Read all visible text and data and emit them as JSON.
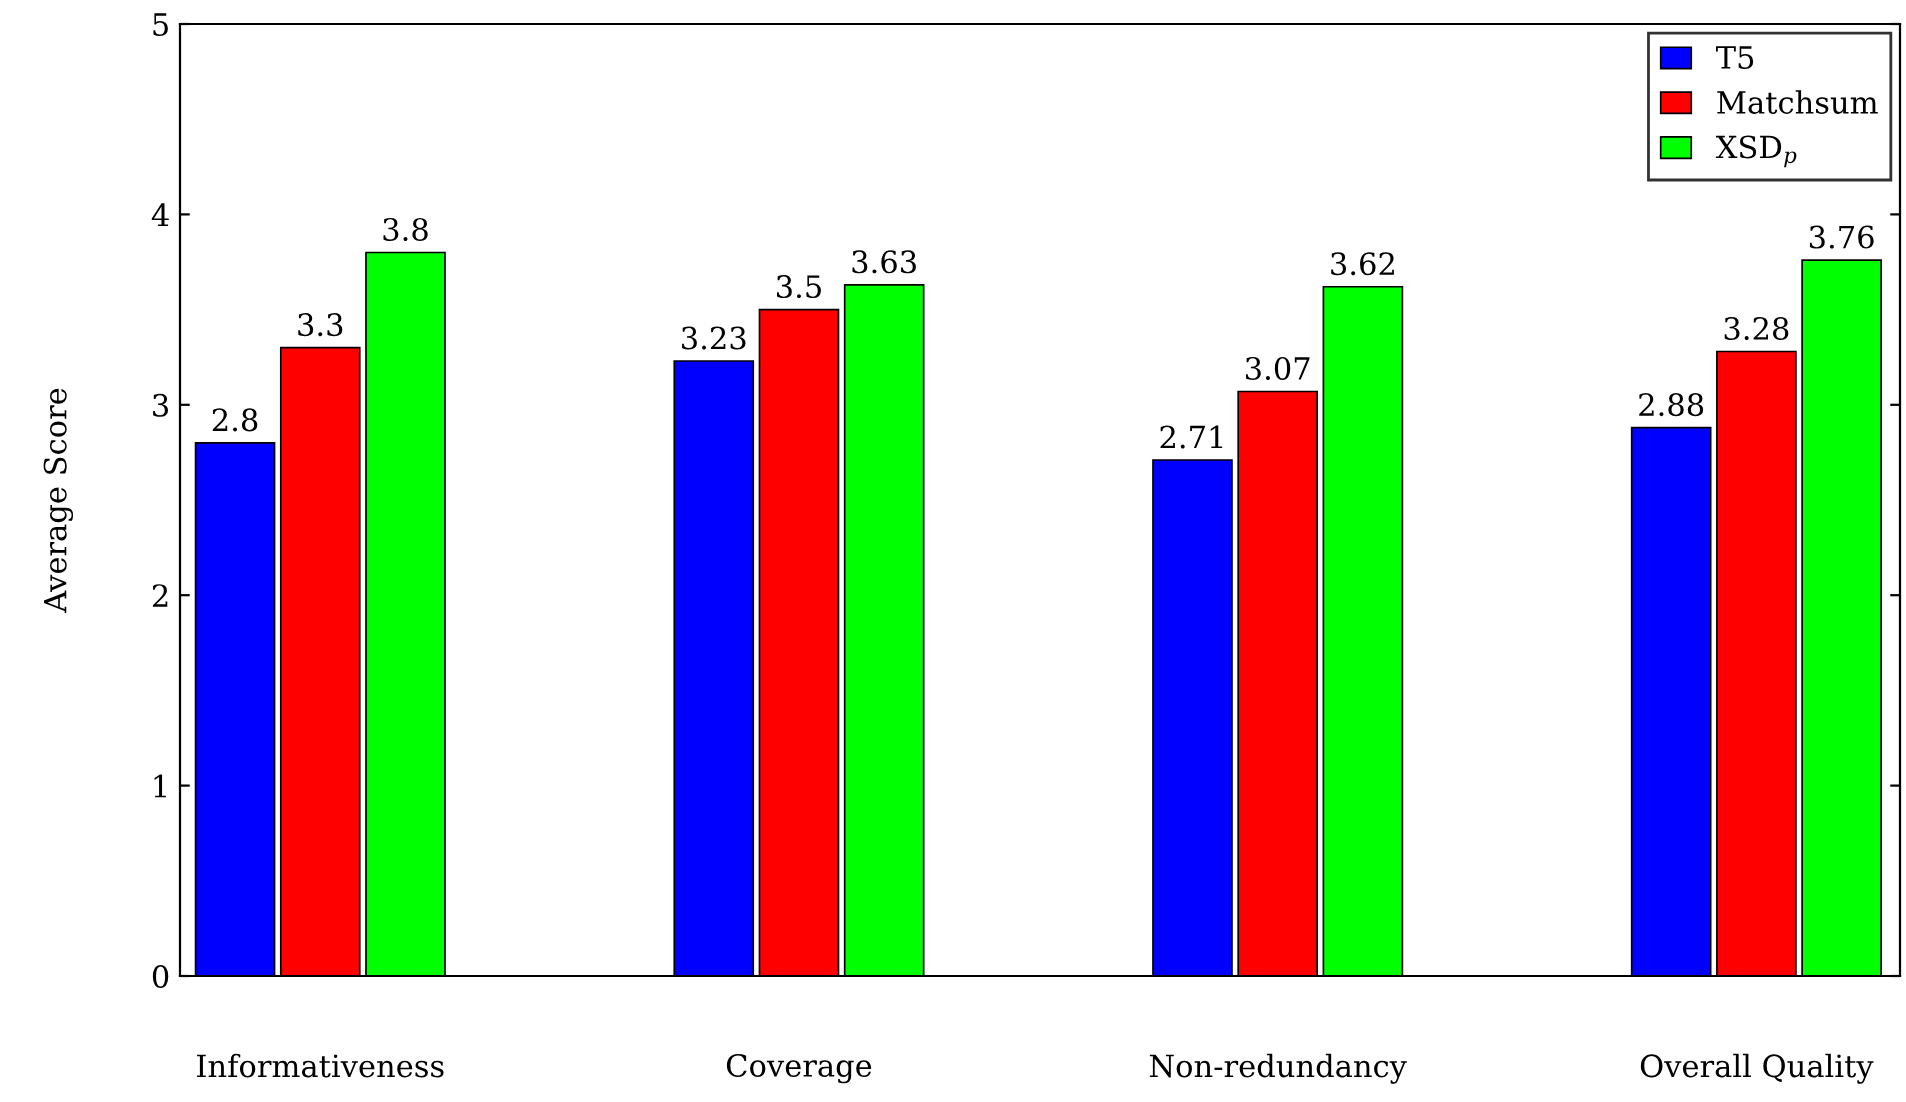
{
  "chart_data": {
    "type": "bar",
    "ylabel": "Average Score",
    "categories": [
      "Informativeness",
      "Coverage",
      "Non-redundancy",
      "Overall Quality"
    ],
    "series": [
      {
        "name": "T5",
        "color": "#0000ff",
        "values": [
          2.8,
          3.23,
          2.71,
          2.88
        ]
      },
      {
        "name": "Matchsum",
        "color": "#ff0000",
        "values": [
          3.3,
          3.5,
          3.07,
          3.28
        ]
      },
      {
        "name": "XSD$_{p}$",
        "color": "#00ff00",
        "values": [
          3.8,
          3.63,
          3.62,
          3.76
        ]
      }
    ],
    "ylim": [
      0,
      5
    ],
    "yticks": [
      0,
      1,
      2,
      3,
      4,
      5
    ],
    "data_labels": true,
    "legend": "top right",
    "grid": false
  }
}
